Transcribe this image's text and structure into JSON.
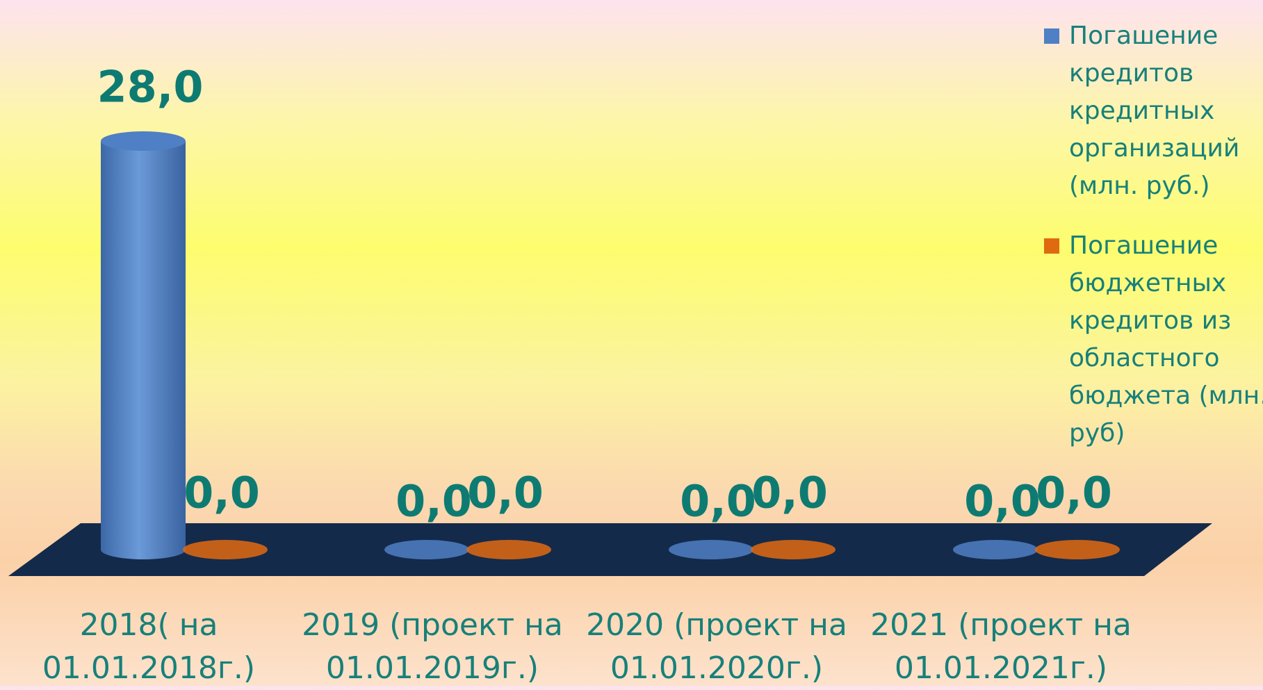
{
  "chart_data": {
    "type": "bar3d",
    "categories": [
      "2018( на 01.01.2018г.)",
      "2019 (проект на 01.01.2019г.)",
      "2020 (проект на 01.01.2020г.)",
      "2021 (проект на 01.01.2021г.)"
    ],
    "series": [
      {
        "name": "Погашение кредитов кредитных организаций (млн. руб.)",
        "color": "#4f7fc4",
        "values": [
          28.0,
          0,
          0,
          0
        ],
        "value_labels": [
          "28,0",
          "0,0",
          "0,0",
          "0,0"
        ]
      },
      {
        "name": "Погашение бюджетных кредитов из областного бюджета (млн. руб)",
        "color": "#e06a10",
        "values": [
          0,
          0,
          0,
          0
        ],
        "value_labels": [
          "0,0",
          "0,0",
          "0,0",
          "0,0"
        ]
      }
    ],
    "legend": "right"
  }
}
